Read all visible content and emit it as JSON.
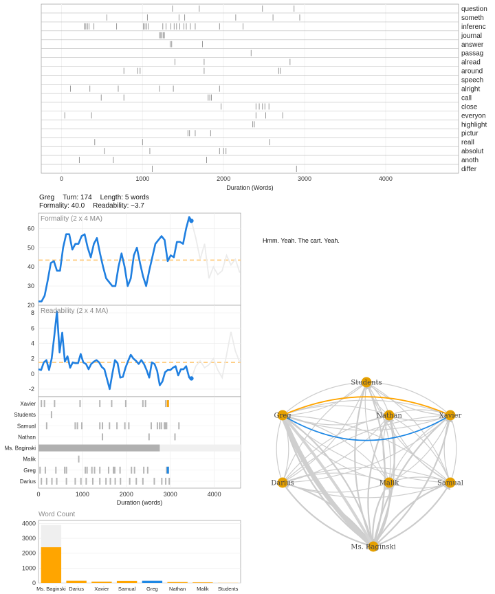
{
  "dispersion": {
    "terms": [
      "question",
      "someth",
      "inferenc",
      "journal",
      "answer",
      "passag",
      "alread",
      "around",
      "speech",
      "alright",
      "call",
      "close",
      "everyon",
      "highlight",
      "pictur",
      "reall",
      "absolut",
      "anoth",
      "differ"
    ],
    "marks": [
      [
        1370,
        1700,
        2480,
        2870
      ],
      [
        560,
        1060,
        1450,
        1520,
        2150,
        2610,
        2940
      ],
      [
        280,
        300,
        320,
        340,
        400,
        680,
        1010,
        1030,
        1050,
        1070,
        1250,
        1290,
        1350,
        1390,
        1420,
        1460,
        1510,
        1540,
        1590,
        1650,
        1950,
        2240
      ],
      [
        1210,
        1225,
        1240,
        1255,
        1270
      ],
      [
        1340,
        1360,
        1740
      ],
      [
        2340
      ],
      [
        1400,
        1760,
        2820
      ],
      [
        770,
        940,
        970,
        1760,
        2680,
        2700
      ],
      [],
      [
        110,
        350,
        700,
        1210,
        1380,
        1950
      ],
      [
        490,
        770,
        1810,
        1830,
        1850
      ],
      [
        1970,
        2400,
        2440,
        2480,
        2510,
        2560
      ],
      [
        40,
        370,
        2400,
        2520,
        2730
      ],
      [
        2360,
        2380
      ],
      [
        1560,
        1580,
        1650,
        1840
      ],
      [
        410,
        1000,
        2570
      ],
      [
        530,
        1090,
        1950,
        2000,
        2030
      ],
      [
        220,
        640,
        1790
      ],
      [
        1120,
        2900
      ]
    ],
    "xlabel": "Duration (Words)",
    "xticks": [
      0,
      1000,
      2000,
      3000,
      4000
    ],
    "xlim": [
      -250,
      4900
    ]
  },
  "turn_info": {
    "speaker": "Greg",
    "turn": "Turn: 174",
    "length": "Length: 5 words",
    "formality": "Formality: 40.0",
    "readability": "Readability: −3.7"
  },
  "formality": {
    "title": "Formality (2 x 4 MA)",
    "ylim": [
      20,
      68
    ],
    "yticks": [
      20,
      30,
      40,
      50,
      60
    ],
    "mean": 43.5,
    "x": [
      0,
      70,
      140,
      210,
      280,
      350,
      420,
      490,
      560,
      630,
      700,
      770,
      840,
      910,
      980,
      1050,
      1120,
      1190,
      1260,
      1330,
      1400,
      1470,
      1540,
      1610,
      1680,
      1750,
      1820,
      1890,
      1960,
      2030,
      2100,
      2170,
      2240,
      2310,
      2380,
      2450,
      2520,
      2590,
      2660,
      2730,
      2800,
      2870,
      2940,
      3010,
      3080,
      3150,
      3220,
      3290,
      3360,
      3430,
      3480
    ],
    "y": [
      22,
      22,
      25,
      33,
      42,
      43,
      38,
      38,
      50,
      57,
      57,
      49,
      52,
      52,
      56,
      57,
      50,
      45,
      52,
      55,
      47,
      40,
      34,
      32,
      30,
      30,
      40,
      47,
      40,
      30,
      34,
      46,
      50,
      42,
      35,
      30,
      38,
      45,
      52,
      54,
      56,
      54,
      43,
      46,
      45,
      53,
      53,
      52,
      60,
      66,
      64
    ],
    "ghost_x": [
      3480,
      3580,
      3680,
      3780,
      3880,
      3980,
      4080,
      4180,
      4280,
      4380,
      4480,
      4580
    ],
    "ghost_y": [
      64,
      55,
      44,
      52,
      34,
      40,
      36,
      38,
      46,
      41,
      44,
      37
    ]
  },
  "readability": {
    "title": "Readability (2 x 4 MA)",
    "ylim": [
      -3,
      9
    ],
    "yticks": [
      -2,
      0,
      2,
      4,
      6,
      8
    ],
    "mean": 1.5,
    "x": [
      0,
      60,
      120,
      180,
      240,
      300,
      360,
      420,
      480,
      540,
      600,
      660,
      720,
      780,
      840,
      900,
      960,
      1020,
      1080,
      1140,
      1200,
      1260,
      1320,
      1380,
      1440,
      1500,
      1560,
      1620,
      1680,
      1740,
      1800,
      1860,
      1920,
      1980,
      2040,
      2100,
      2160,
      2220,
      2280,
      2340,
      2400,
      2460,
      2520,
      2580,
      2640,
      2700,
      2760,
      2820,
      2880,
      2940,
      3000,
      3060,
      3120,
      3180,
      3240,
      3300,
      3360,
      3430,
      3480
    ],
    "y": [
      0.6,
      0.5,
      1.5,
      1.8,
      0.5,
      2.0,
      5.0,
      8.2,
      2.8,
      5.4,
      1.6,
      2.3,
      0.8,
      1.5,
      1.4,
      1.4,
      2.6,
      1.5,
      1.3,
      0.6,
      1.3,
      1.6,
      1.8,
      1.5,
      0.9,
      0.6,
      -0.7,
      -2.0,
      0,
      1.8,
      1.4,
      -0.5,
      -0.4,
      0.8,
      1.7,
      2.5,
      2.0,
      1.7,
      1.3,
      1.8,
      1.3,
      0.5,
      -0.5,
      1.5,
      1.3,
      0.4,
      -1.5,
      -1.0,
      0.2,
      0.5,
      0.5,
      0.8,
      1.0,
      -0.2,
      0.6,
      0.6,
      1.0,
      -0.5,
      -0.6
    ],
    "ghost_x": [
      3480,
      3580,
      3680,
      3780,
      3880,
      3980,
      4080,
      4180,
      4280,
      4380,
      4480,
      4580
    ],
    "ghost_y": [
      -0.6,
      1.0,
      1.7,
      0.8,
      1.2,
      2.0,
      0.5,
      -0.5,
      2.5,
      5.5,
      3.0,
      1.5
    ]
  },
  "timeline": {
    "speakers": [
      "Xavier",
      "Students",
      "Samual",
      "Nathan",
      "Ms. Baginski",
      "Malik",
      "Greg",
      "Darius"
    ],
    "marks": [
      [
        50,
        120,
        350,
        930,
        1380,
        1650,
        1970,
        2360,
        2420,
        2880,
        2940
      ],
      [
        280
      ],
      [
        170,
        820,
        870,
        970,
        1380,
        1440,
        1600,
        1770,
        1950,
        2040,
        2550,
        2690,
        2740,
        2780,
        2850,
        2870,
        2900,
        3180
      ],
      [
        1440,
        2500,
        3090
      ],
      [],
      [
        900
      ],
      [
        20,
        140,
        380,
        580,
        620,
        1050,
        1090,
        1200,
        1260,
        1380,
        1580,
        1690,
        1720,
        1840,
        2100,
        2170,
        2380,
        2470,
        2900,
        2940
      ],
      [
        50,
        170,
        290,
        400,
        620,
        820,
        950,
        1070,
        1220,
        1380,
        1520,
        1620,
        1730,
        1850,
        2060,
        2210,
        2360,
        2620,
        2790,
        2880,
        2960
      ]
    ],
    "highlight": {
      "speaker_index": 6,
      "x": 2920
    },
    "highlight_top": {
      "speaker_index": 0,
      "x": 2920
    },
    "baginski_span": [
      0,
      2760
    ],
    "baginski_ghost_span": [
      2760,
      4600
    ],
    "xlabel": "Duration (words)",
    "xticks": [
      0,
      1000,
      2000,
      3000,
      4000
    ],
    "xlim": [
      0,
      4600
    ]
  },
  "word_count": {
    "title": "Word Count",
    "categories": [
      "Ms. Baginski",
      "Darius",
      "Xavier",
      "Samual",
      "Greg",
      "Nathan",
      "Malik",
      "Students"
    ],
    "totals": [
      3900,
      170,
      110,
      160,
      170,
      80,
      60,
      20
    ],
    "values": [
      2400,
      150,
      90,
      140,
      150,
      60,
      40,
      10
    ],
    "colors": [
      "#ffa500",
      "#ffa500",
      "#ffa500",
      "#ffa500",
      "#1e88e5",
      "#ffa500",
      "#ffa500",
      "#ffa500"
    ],
    "yticks": [
      0,
      1000,
      2000,
      3000,
      4000
    ],
    "ylim": [
      0,
      4200
    ]
  },
  "utterance": "Hmm. Yeah. The cart. Yeah.",
  "network": {
    "nodes": [
      "Students",
      "Greg",
      "Nathan",
      "Xavier",
      "Darius",
      "Malik",
      "Samual",
      "Ms. Baginski"
    ],
    "colors": {
      "node": "#e5a000",
      "edge": "#cccccc",
      "blue": "#1e88e5",
      "orange": "#ffa500"
    }
  },
  "colors": {
    "blue": "#1f7fe0",
    "mean": "#ffcc80",
    "ghost": "#ebebeb",
    "grid": "#ebebeb",
    "tick": "#a8a8a8"
  }
}
